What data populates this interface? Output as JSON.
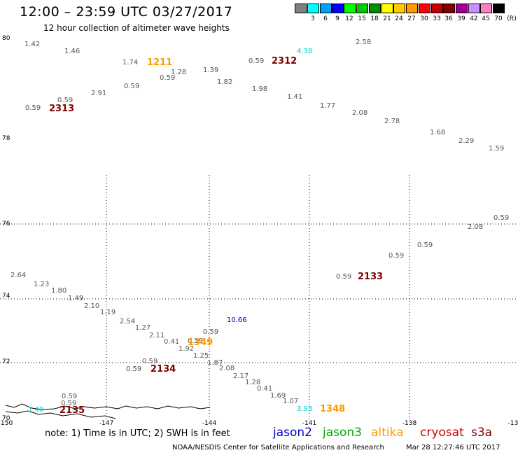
{
  "header": {
    "title": "12:00 – 23:59 UTC 03/27/2017",
    "subtitle": "12 hour collection of altimeter wave heights"
  },
  "scale": {
    "unit_label": "(ft)",
    "swatches": [
      {
        "value": "",
        "color": "#808080"
      },
      {
        "value": "3",
        "color": "#00ffff"
      },
      {
        "value": "6",
        "color": "#00a0ff"
      },
      {
        "value": "9",
        "color": "#0000ff"
      },
      {
        "value": "12",
        "color": "#00ff00"
      },
      {
        "value": "15",
        "color": "#00c800"
      },
      {
        "value": "18",
        "color": "#008c00"
      },
      {
        "value": "21",
        "color": "#ffff00"
      },
      {
        "value": "24",
        "color": "#ffcc00"
      },
      {
        "value": "27",
        "color": "#ff9900"
      },
      {
        "value": "30",
        "color": "#ff0000"
      },
      {
        "value": "33",
        "color": "#c00000"
      },
      {
        "value": "36",
        "color": "#800000"
      },
      {
        "value": "39",
        "color": "#a00090"
      },
      {
        "value": "42",
        "color": "#c890ff"
      },
      {
        "value": "45",
        "color": "#ff80c0"
      },
      {
        "value": "70",
        "color": "#000000"
      }
    ]
  },
  "axes": {
    "y_ticks": [
      "80",
      "78",
      "76",
      "74",
      "72",
      "70"
    ],
    "x_ticks": [
      "-150",
      "-147",
      "-144",
      "-141",
      "-138",
      "-13"
    ]
  },
  "observations": [
    {
      "t": "1.42",
      "color": "#555555"
    },
    {
      "t": "1.46",
      "color": "#555555"
    },
    {
      "t": "1.74",
      "color": "#555555"
    },
    {
      "t": "1.28",
      "color": "#555555"
    },
    {
      "t": "1.39",
      "color": "#555555"
    },
    {
      "t": "0.59",
      "color": "#555555"
    },
    {
      "t": "4.38",
      "color": "#00cccc"
    },
    {
      "t": "2.58",
      "color": "#555555"
    },
    {
      "t": "0.59",
      "color": "#555555"
    },
    {
      "t": "0.59",
      "color": "#555555"
    },
    {
      "t": "1.82",
      "color": "#555555"
    },
    {
      "t": "2.91",
      "color": "#555555"
    },
    {
      "t": "1.98",
      "color": "#555555"
    },
    {
      "t": "0.59",
      "color": "#555555"
    },
    {
      "t": "1.41",
      "color": "#555555"
    },
    {
      "t": "0.59",
      "color": "#555555"
    },
    {
      "t": "1.77",
      "color": "#555555"
    },
    {
      "t": "2.08",
      "color": "#555555"
    },
    {
      "t": "2.78",
      "color": "#555555"
    },
    {
      "t": "1.68",
      "color": "#555555"
    },
    {
      "t": "2.29",
      "color": "#555555"
    },
    {
      "t": "1.59",
      "color": "#555555"
    },
    {
      "t": "0.59",
      "color": "#555555"
    },
    {
      "t": "2.08",
      "color": "#555555"
    },
    {
      "t": "0.59",
      "color": "#555555"
    },
    {
      "t": "0.59",
      "color": "#555555"
    },
    {
      "t": "0.59",
      "color": "#555555"
    },
    {
      "t": "2.64",
      "color": "#555555"
    },
    {
      "t": "1.23",
      "color": "#555555"
    },
    {
      "t": "1.80",
      "color": "#555555"
    },
    {
      "t": "1.49",
      "color": "#555555"
    },
    {
      "t": "2.10",
      "color": "#555555"
    },
    {
      "t": "1.19",
      "color": "#555555"
    },
    {
      "t": "2.54",
      "color": "#555555"
    },
    {
      "t": "1.27",
      "color": "#555555"
    },
    {
      "t": "2.11",
      "color": "#555555"
    },
    {
      "t": "0.41",
      "color": "#555555"
    },
    {
      "t": "0.59",
      "color": "#555555"
    },
    {
      "t": "1.92",
      "color": "#555555"
    },
    {
      "t": "0.59",
      "color": "#555555"
    },
    {
      "t": "1.25",
      "color": "#555555"
    },
    {
      "t": "1.87",
      "color": "#555555"
    },
    {
      "t": "10.66",
      "color": "#0000cc"
    },
    {
      "t": "0.59",
      "color": "#555555"
    },
    {
      "t": "0.59",
      "color": "#555555"
    },
    {
      "t": "2.08",
      "color": "#555555"
    },
    {
      "t": "2.17",
      "color": "#555555"
    },
    {
      "t": "1.28",
      "color": "#555555"
    },
    {
      "t": "0.41",
      "color": "#555555"
    },
    {
      "t": "1.69",
      "color": "#555555"
    },
    {
      "t": "1.07",
      "color": "#555555"
    },
    {
      "t": "3.93",
      "color": "#00cccc"
    },
    {
      "t": "0.59",
      "color": "#555555"
    },
    {
      "t": "0.59",
      "color": "#555555"
    },
    {
      "t": "1.40",
      "color": "#00cccc"
    }
  ],
  "passes": [
    {
      "t": "1211",
      "color": "#ff9900"
    },
    {
      "t": "2312",
      "color": "#800000"
    },
    {
      "t": "2313",
      "color": "#800000"
    },
    {
      "t": "2133",
      "color": "#800000"
    },
    {
      "t": "1349",
      "color": "#ff9900"
    },
    {
      "t": "2134",
      "color": "#800000"
    },
    {
      "t": "2135",
      "color": "#800000"
    },
    {
      "t": "1348",
      "color": "#ff9900"
    }
  ],
  "footer": {
    "note": "note:  1) Time is in UTC;  2) SWH is in feet",
    "legend": [
      {
        "label": "jason2",
        "color": "#0000cc"
      },
      {
        "label": "jason3",
        "color": "#00aa00"
      },
      {
        "label": "altika",
        "color": "#ff9900"
      },
      {
        "label": "cryosat",
        "color": "#cc0000"
      },
      {
        "label": "s3a",
        "color": "#800000"
      }
    ],
    "credit": "NOAA/NESDIS Center for Satellite Applications and Research",
    "timestamp": "Mar 28 12:27:46 UTC 2017"
  }
}
